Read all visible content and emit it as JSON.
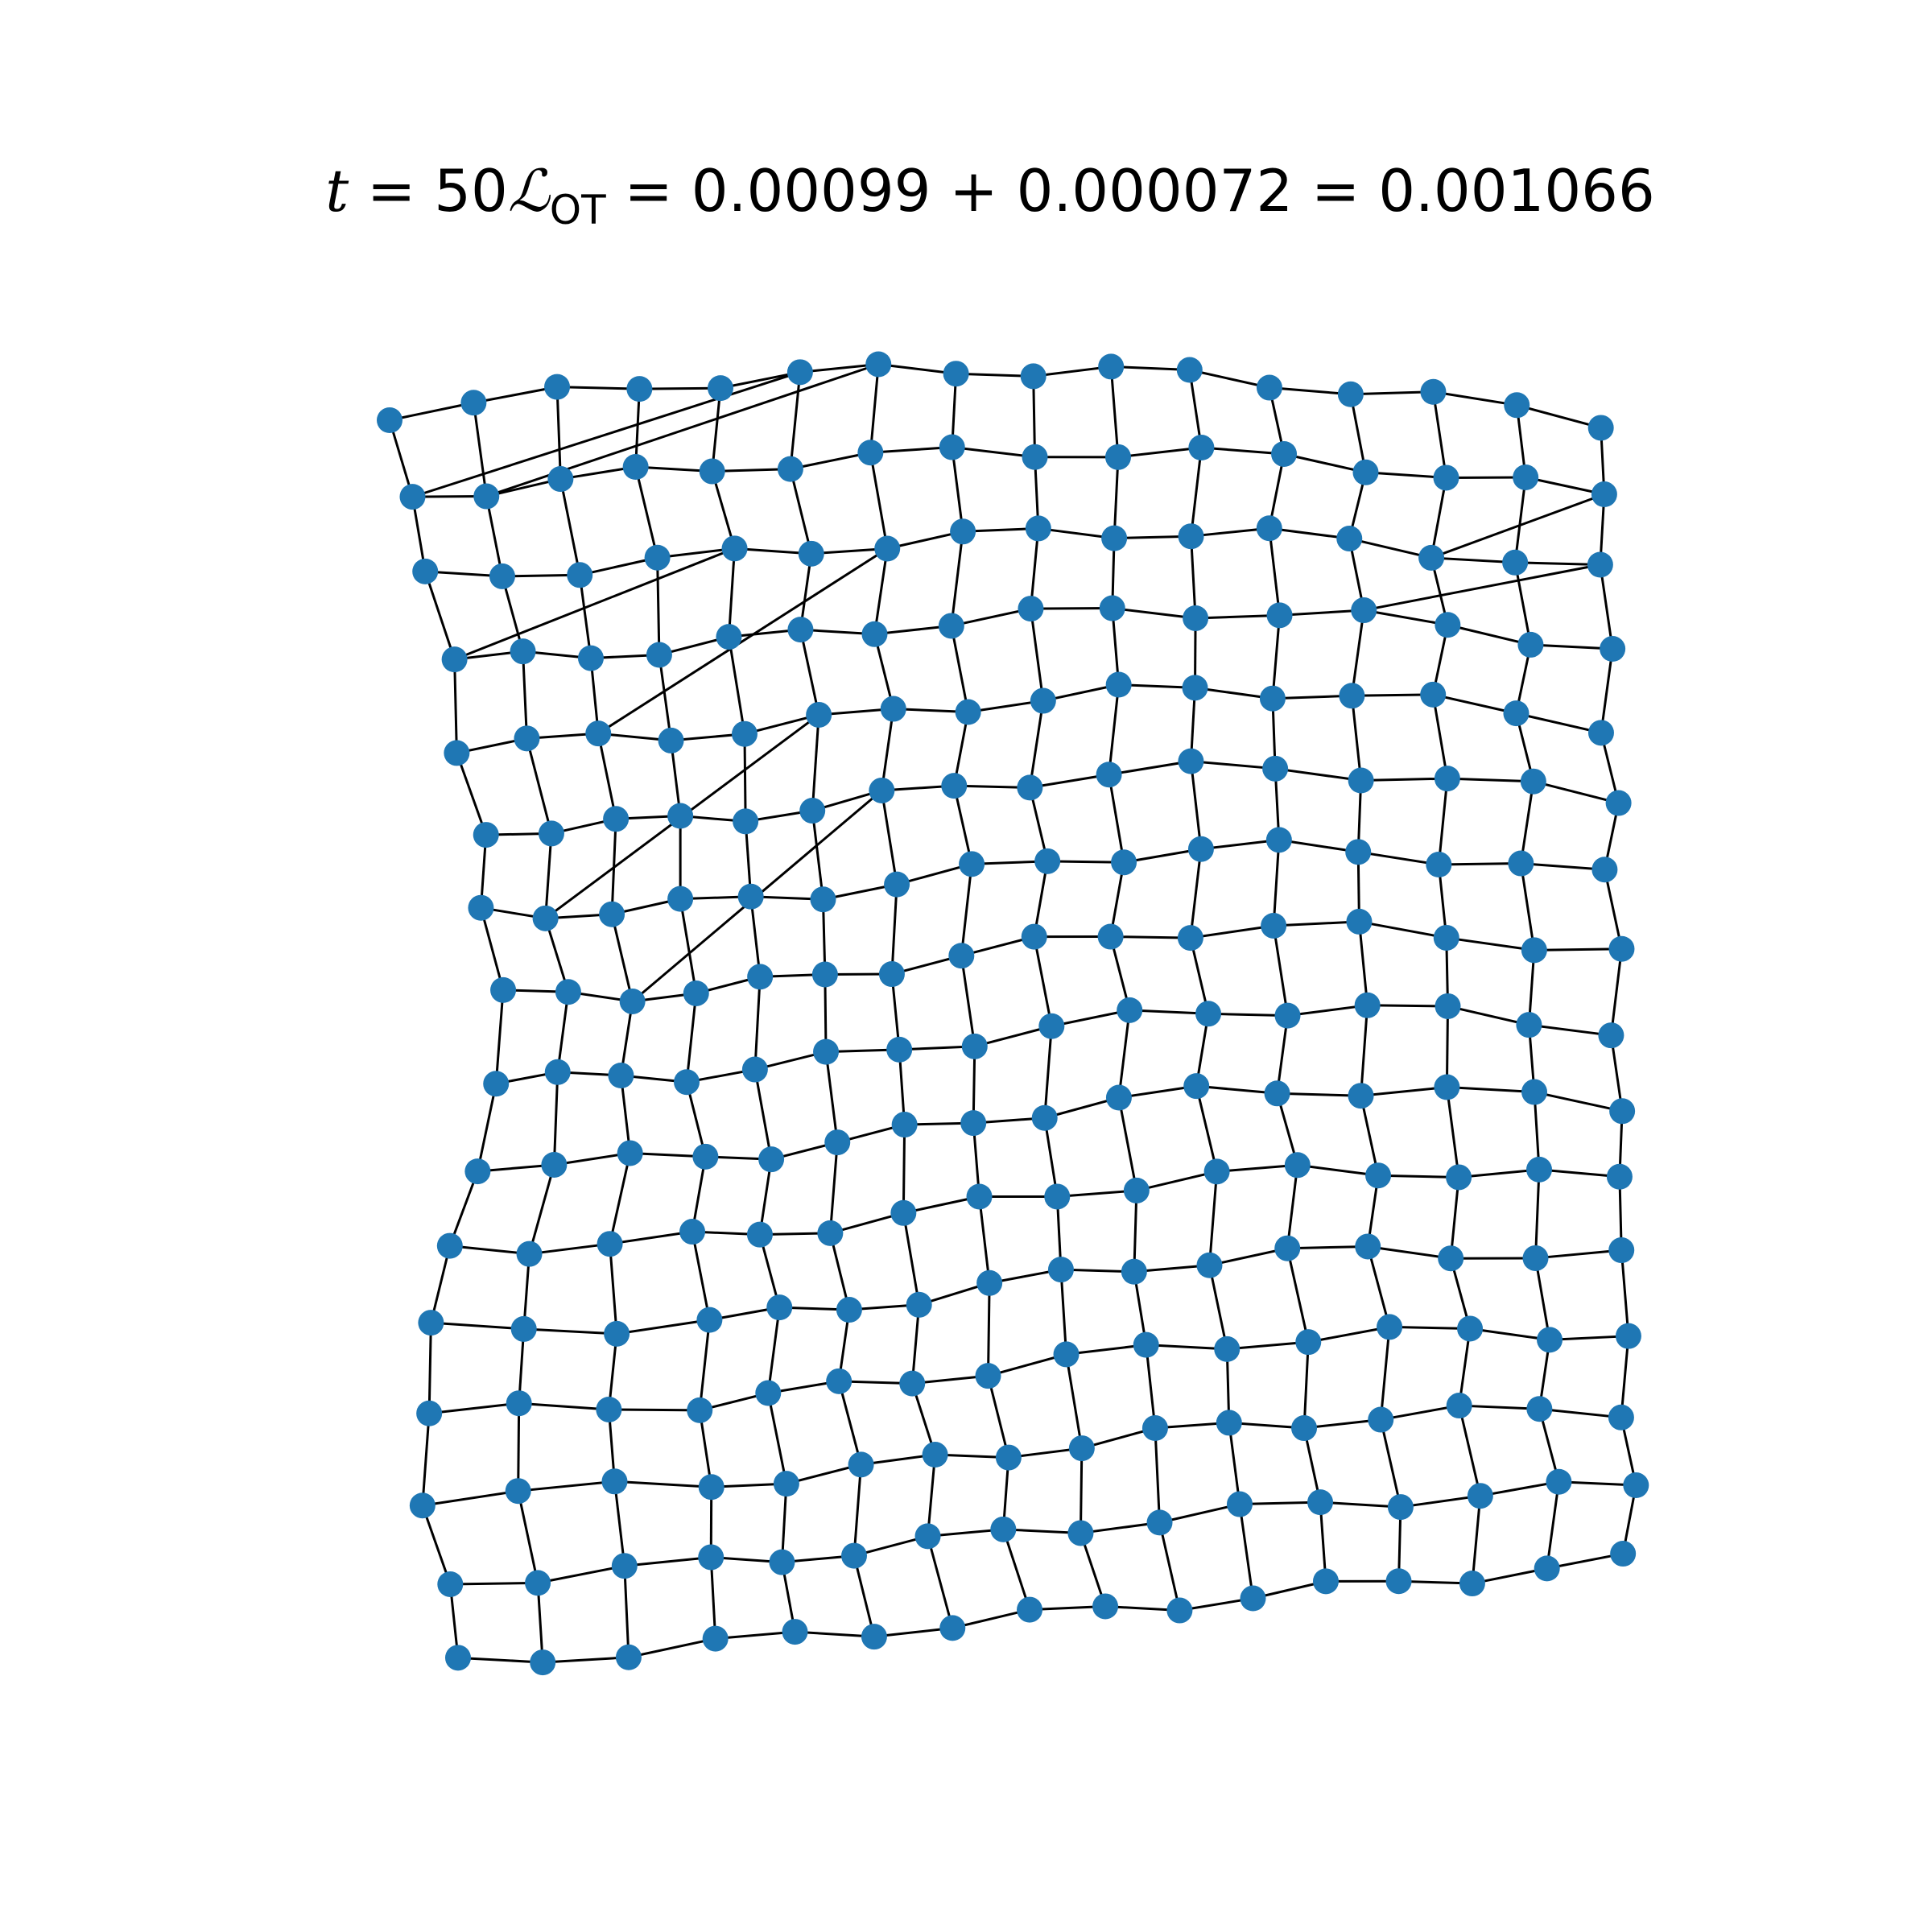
{
  "title": {
    "t_symbol": "t",
    "equals": " = ",
    "t_value": "50",
    "loss_symbol": "ℒ",
    "loss_subscript": "OT",
    "expression": " = 0.00099 + 0.000072 = 0.001066"
  },
  "colors": {
    "node": "#1f77b4",
    "edge": "#000000"
  }
}
